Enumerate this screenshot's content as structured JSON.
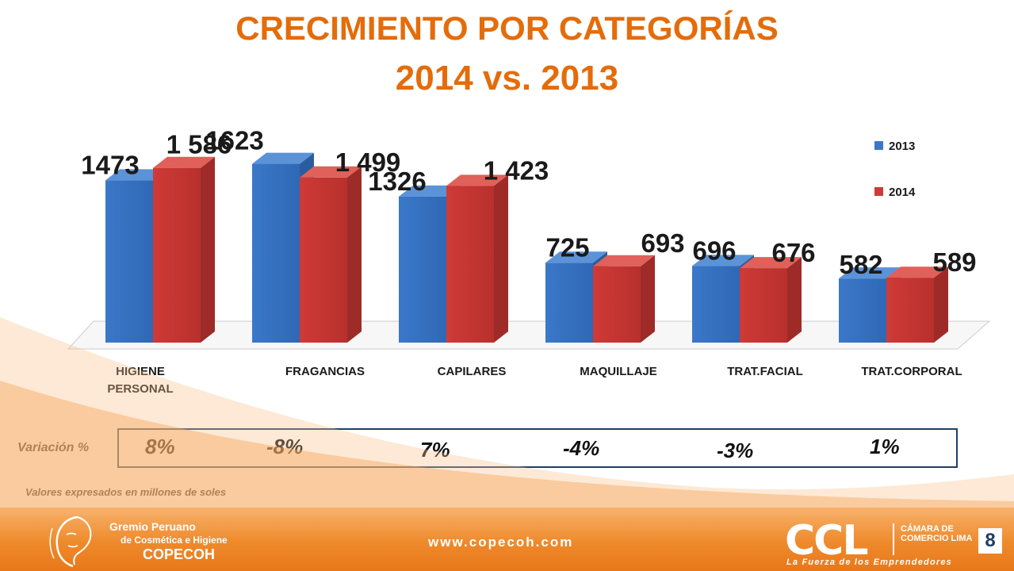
{
  "header": {
    "title": "CRECIMIENTO POR CATEGORÍAS",
    "subtitle": "2014  vs.  2013"
  },
  "chart_data": {
    "type": "bar",
    "categories": [
      "HIGIENE PERSONAL",
      "FRAGANCIAS",
      "CAPILARES",
      "MAQUILLAJE",
      "TRAT.FACIAL",
      "TRAT.CORPORAL"
    ],
    "category_lines": [
      [
        "HIGIENE",
        "PERSONAL"
      ],
      [
        "FRAGANCIAS"
      ],
      [
        "CAPILARES"
      ],
      [
        "MAQUILLAJE"
      ],
      [
        "TRAT.FACIAL"
      ],
      [
        "TRAT.CORPORAL"
      ]
    ],
    "series": [
      {
        "name": "2013",
        "values": [
          1473,
          1623,
          1326,
          725,
          696,
          582
        ],
        "labels": [
          "1473",
          "1623",
          "1326",
          "725",
          "696",
          "582"
        ],
        "color": "#3b78c9"
      },
      {
        "name": "2014",
        "values": [
          1586,
          1499,
          1423,
          693,
          676,
          589
        ],
        "labels": [
          "1 586",
          "1 499",
          "1 423",
          "693",
          "676",
          "589"
        ],
        "color": "#cf3a36"
      }
    ],
    "ylim": [
      0,
      1800
    ],
    "grid": false,
    "legend": "top-right"
  },
  "variation": {
    "label": "Variación %",
    "values": [
      "8%",
      "-8%",
      "7%",
      "-4%",
      "-3%",
      "1%"
    ]
  },
  "note": "Valores expresados en millones de soles",
  "footer": {
    "gremio_line1": "Gremio Peruano",
    "gremio_line2": "de Cosmética e Higiene",
    "gremio_line3": "COPECOH",
    "website": "www.copecoh.com",
    "ccl_logo": "CCL",
    "ccl_name": "CÁMARA DE COMERCIO LIMA",
    "ccl_tagline": "La Fuerza de los Emprendedores",
    "page_number": "8"
  },
  "icons": {
    "gremio_logo": "face-silhouette-icon"
  }
}
